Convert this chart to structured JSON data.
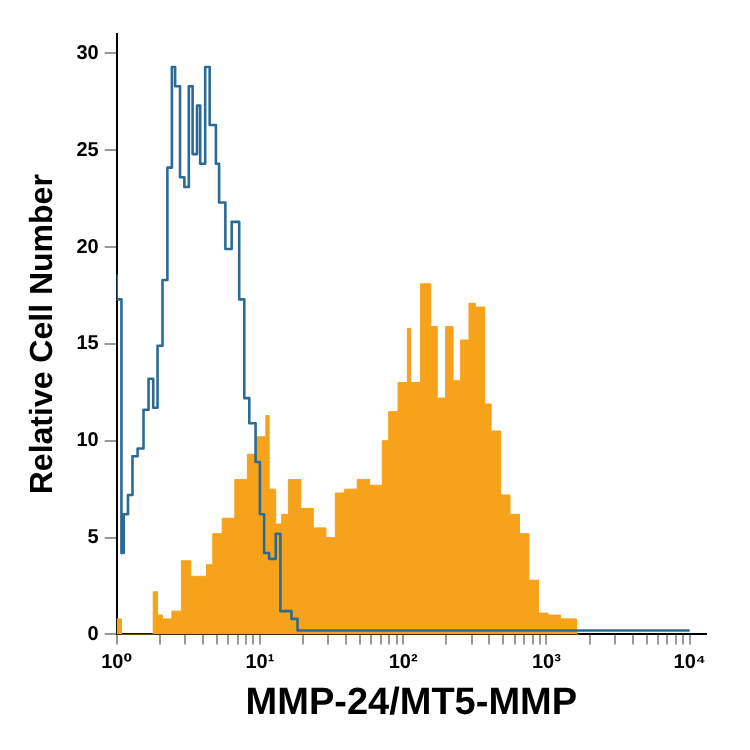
{
  "chart_data": {
    "type": "step",
    "xlabel": "MMP-24/MT5-MMP",
    "ylabel": "Relative Cell Number",
    "log": "x",
    "xlim": [
      1,
      13000
    ],
    "ylim": [
      0,
      31
    ],
    "xticks": [
      {
        "value": 1,
        "label": "10⁰"
      },
      {
        "value": 2,
        "label": null
      },
      {
        "value": 3,
        "label": null
      },
      {
        "value": 4,
        "label": null
      },
      {
        "value": 5,
        "label": null
      },
      {
        "value": 6,
        "label": null
      },
      {
        "value": 7,
        "label": null
      },
      {
        "value": 8,
        "label": null
      },
      {
        "value": 9,
        "label": null
      },
      {
        "value": 10,
        "label": "10¹"
      },
      {
        "value": 20,
        "label": null
      },
      {
        "value": 30,
        "label": null
      },
      {
        "value": 40,
        "label": null
      },
      {
        "value": 50,
        "label": null
      },
      {
        "value": 60,
        "label": null
      },
      {
        "value": 70,
        "label": null
      },
      {
        "value": 80,
        "label": null
      },
      {
        "value": 90,
        "label": null
      },
      {
        "value": 100,
        "label": "10²"
      },
      {
        "value": 200,
        "label": null
      },
      {
        "value": 300,
        "label": null
      },
      {
        "value": 400,
        "label": null
      },
      {
        "value": 500,
        "label": null
      },
      {
        "value": 600,
        "label": null
      },
      {
        "value": 700,
        "label": null
      },
      {
        "value": 800,
        "label": null
      },
      {
        "value": 900,
        "label": null
      },
      {
        "value": 1000,
        "label": "10³"
      },
      {
        "value": 2000,
        "label": null
      },
      {
        "value": 3000,
        "label": null
      },
      {
        "value": 4000,
        "label": null
      },
      {
        "value": 5000,
        "label": null
      },
      {
        "value": 6000,
        "label": null
      },
      {
        "value": 7000,
        "label": null
      },
      {
        "value": 8000,
        "label": null
      },
      {
        "value": 9000,
        "label": null
      },
      {
        "value": 10000,
        "label": "10⁴"
      }
    ],
    "yticks": [
      0,
      5,
      10,
      15,
      20,
      25,
      30
    ],
    "grid": false,
    "legend": false,
    "marker": "none",
    "series": [
      {
        "type": "area",
        "color": "#f7a21b",
        "x": [
          1.0,
          1.08,
          1.14,
          1.8,
          1.93,
          2.09,
          2.43,
          2.83,
          3.29,
          3.64,
          4.24,
          4.69,
          5.45,
          6.68,
          8.17,
          9.5,
          11.0,
          11.6,
          12.9,
          14.2,
          15.8,
          19.3,
          23.6,
          28.9,
          33.6,
          39.0,
          47.8,
          58.4,
          71.5,
          79.2,
          92.1,
          107,
          113,
          132,
          156,
          173,
          198,
          223,
          252,
          288,
          319,
          371,
          411,
          479,
          557,
          649,
          755,
          880,
          1025,
          1257,
          1622,
          1706
        ],
        "values": [
          0.8,
          0.8,
          0,
          0,
          2.2,
          1.0,
          0.8,
          1.2,
          3.8,
          3.0,
          3.0,
          3.6,
          5.2,
          6.0,
          8.0,
          9.3,
          10.2,
          11.3,
          7.5,
          5.7,
          6.2,
          8.0,
          6.5,
          5.5,
          5.0,
          7.3,
          7.5,
          8.0,
          7.7,
          10.0,
          11.5,
          13.0,
          15.8,
          13.0,
          18.1,
          15.9,
          12.2,
          15.9,
          13.1,
          15.2,
          17.1,
          16.9,
          11.9,
          10.5,
          7.2,
          6.2,
          5.2,
          2.8,
          1.1,
          1.0,
          0.8,
          0
        ]
      },
      {
        "type": "step",
        "color": "#2b6a94",
        "x": [
          1.0,
          1.08,
          1.12,
          1.2,
          1.29,
          1.4,
          1.54,
          1.67,
          1.8,
          1.93,
          2.09,
          2.26,
          2.43,
          2.56,
          2.77,
          2.97,
          3.19,
          3.39,
          3.64,
          3.83,
          4.15,
          4.46,
          4.93,
          5.19,
          5.74,
          6.35,
          7.17,
          7.78,
          8.43,
          9.33,
          10.0,
          10.7,
          11.6,
          12.9,
          13.9,
          15.0,
          16.6,
          18.3,
          20.2,
          10000
        ],
        "values": [
          18.6,
          17.3,
          4.2,
          6.2,
          7.2,
          9.2,
          9.6,
          11.6,
          13.2,
          11.7,
          14.9,
          18.3,
          24.1,
          29.3,
          28.3,
          23.6,
          23.1,
          28.3,
          24.8,
          27.3,
          24.3,
          29.3,
          26.3,
          24.3,
          22.3,
          19.9,
          21.3,
          17.3,
          12.2,
          10.9,
          8.9,
          6.2,
          4.2,
          3.9,
          5.2,
          1.2,
          1.2,
          0.8,
          0.2,
          0.2
        ]
      }
    ]
  }
}
